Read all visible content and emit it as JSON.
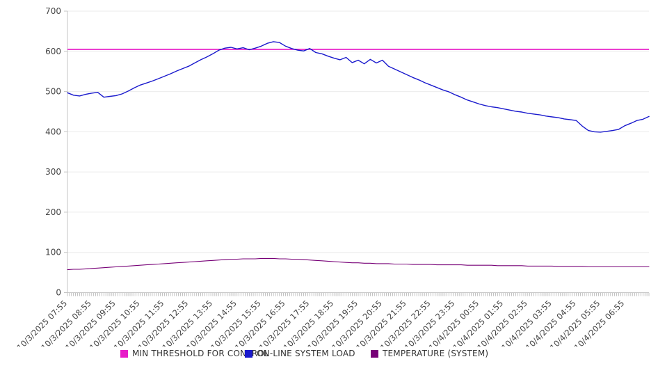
{
  "chart_data": {
    "type": "line",
    "title": "",
    "legend_position": "bottom",
    "grid": "horizontal",
    "x_axis": {
      "tick_labels": [
        "10/3/2025 07:55",
        "10/3/2025 08:55",
        "10/3/2025 09:55",
        "10/3/2025 10:55",
        "10/3/2025 11:55",
        "10/3/2025 12:55",
        "10/3/2025 13:55",
        "10/3/2025 14:55",
        "10/3/2025 15:55",
        "10/3/2025 16:55",
        "10/3/2025 17:55",
        "10/3/2025 18:55",
        "10/3/2025 19:55",
        "10/3/2025 20:55",
        "10/3/2025 21:55",
        "10/3/2025 22:55",
        "10/3/2025 23:55",
        "10/4/2025 00:55",
        "10/4/2025 01:55",
        "10/4/2025 02:55",
        "10/4/2025 03:55",
        "10/4/2025 04:55",
        "10/4/2025 05:55",
        "10/4/2025 06:55"
      ],
      "label_rotation_deg": -45,
      "minor_tick_interval_minutes": 5,
      "sample_interval_minutes": 15,
      "span_hours": 24
    },
    "y_axis": {
      "min": 0,
      "max": 700,
      "tick_step": 100,
      "tick_labels": [
        "0",
        "100",
        "200",
        "300",
        "400",
        "500",
        "600",
        "700"
      ]
    },
    "series": [
      {
        "name": "MIN THRESHOLD FOR CONTROL",
        "kind": "threshold",
        "color": "#e71bc8",
        "value": 605
      },
      {
        "name": "ON-LINE SYSTEM LOAD",
        "kind": "line",
        "color": "#1a1acd",
        "values": [
          497,
          491,
          489,
          493,
          496,
          498,
          486,
          488,
          490,
          494,
          501,
          509,
          516,
          521,
          526,
          532,
          538,
          544,
          551,
          557,
          563,
          571,
          579,
          586,
          594,
          603,
          608,
          610,
          606,
          609,
          604,
          608,
          613,
          620,
          624,
          622,
          613,
          607,
          603,
          601,
          607,
          597,
          594,
          588,
          583,
          579,
          585,
          572,
          578,
          569,
          580,
          571,
          578,
          563,
          556,
          549,
          542,
          535,
          529,
          522,
          516,
          510,
          504,
          499,
          492,
          486,
          479,
          474,
          469,
          465,
          462,
          460,
          457,
          454,
          451,
          449,
          446,
          444,
          442,
          439,
          437,
          435,
          432,
          430,
          428,
          414,
          403,
          400,
          399,
          401,
          403,
          406,
          415,
          421,
          428,
          431,
          438
        ]
      },
      {
        "name": "TEMPERATURE (SYSTEM)",
        "kind": "line",
        "color": "#770077",
        "values": [
          57,
          58,
          58,
          59,
          60,
          61,
          62,
          63,
          64,
          65,
          66,
          67,
          68,
          69,
          70,
          71,
          72,
          73,
          74,
          75,
          76,
          77,
          78,
          79,
          80,
          81,
          82,
          83,
          83,
          84,
          84,
          84,
          85,
          85,
          85,
          84,
          84,
          83,
          83,
          82,
          81,
          80,
          79,
          78,
          77,
          76,
          75,
          74,
          74,
          73,
          73,
          72,
          72,
          72,
          71,
          71,
          71,
          70,
          70,
          70,
          70,
          69,
          69,
          69,
          69,
          69,
          68,
          68,
          68,
          68,
          68,
          67,
          67,
          67,
          67,
          67,
          66,
          66,
          66,
          66,
          66,
          65,
          65,
          65,
          65,
          65,
          64,
          64,
          64,
          64,
          64,
          64,
          64,
          64,
          64,
          64,
          64
        ]
      }
    ]
  }
}
